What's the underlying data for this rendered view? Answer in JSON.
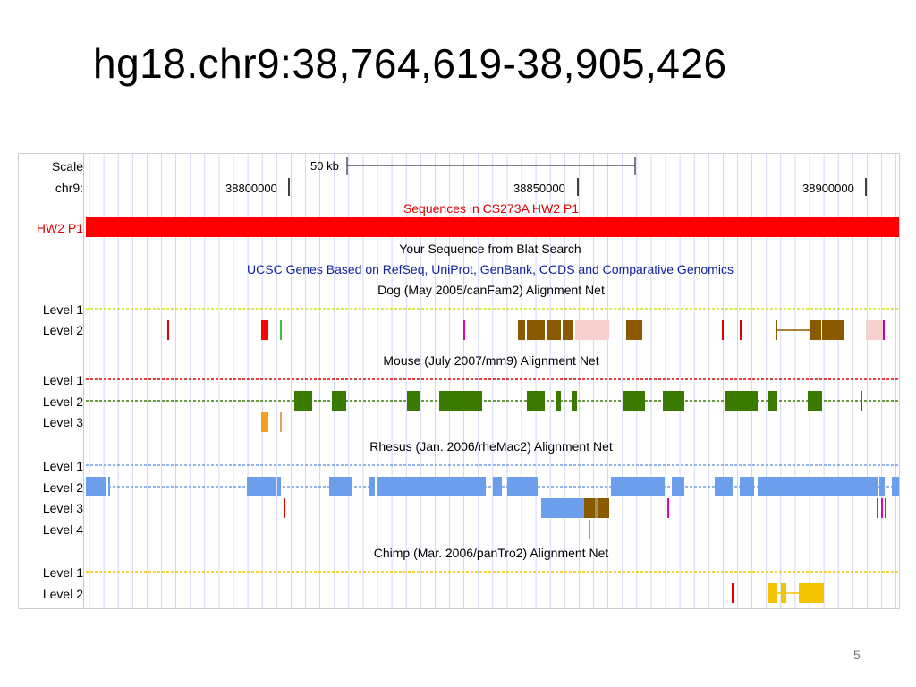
{
  "slide": {
    "title": "hg18.chr9:38,764,619-38,905,426",
    "page_number": "5"
  },
  "browser": {
    "scale_label": "Scale",
    "scale_value": "50 kb",
    "chr_label": "chr9:",
    "positions": [
      "38800000",
      "38850000",
      "38900000"
    ],
    "custom_track_title": "Sequences in CS273A HW2 P1",
    "custom_track_label": "HW2 P1",
    "blat_title": "Your Sequence from Blat Search",
    "genes_title": "UCSC Genes Based on RefSeq, UniProt, GenBank, CCDS and Comparative Genomics",
    "dog_title": "Dog (May 2005/canFam2) Alignment Net",
    "mouse_title": "Mouse (July 2007/mm9) Alignment Net",
    "rhesus_title": "Rhesus (Jan. 2006/rheMac2) Alignment Net",
    "chimp_title": "Chimp (Mar. 2006/panTro2) Alignment Net",
    "level_labels": {
      "l1": "Level 1",
      "l2": "Level 2",
      "l3": "Level 3",
      "l4": "Level 4"
    },
    "colors": {
      "custom_track": "#ff0000",
      "dog": "#8b5a00",
      "mouse": "#3a7a00",
      "rhesus": "#6d9eeb",
      "chimp": "#f5c400",
      "grid": "#c8d0f0"
    }
  }
}
